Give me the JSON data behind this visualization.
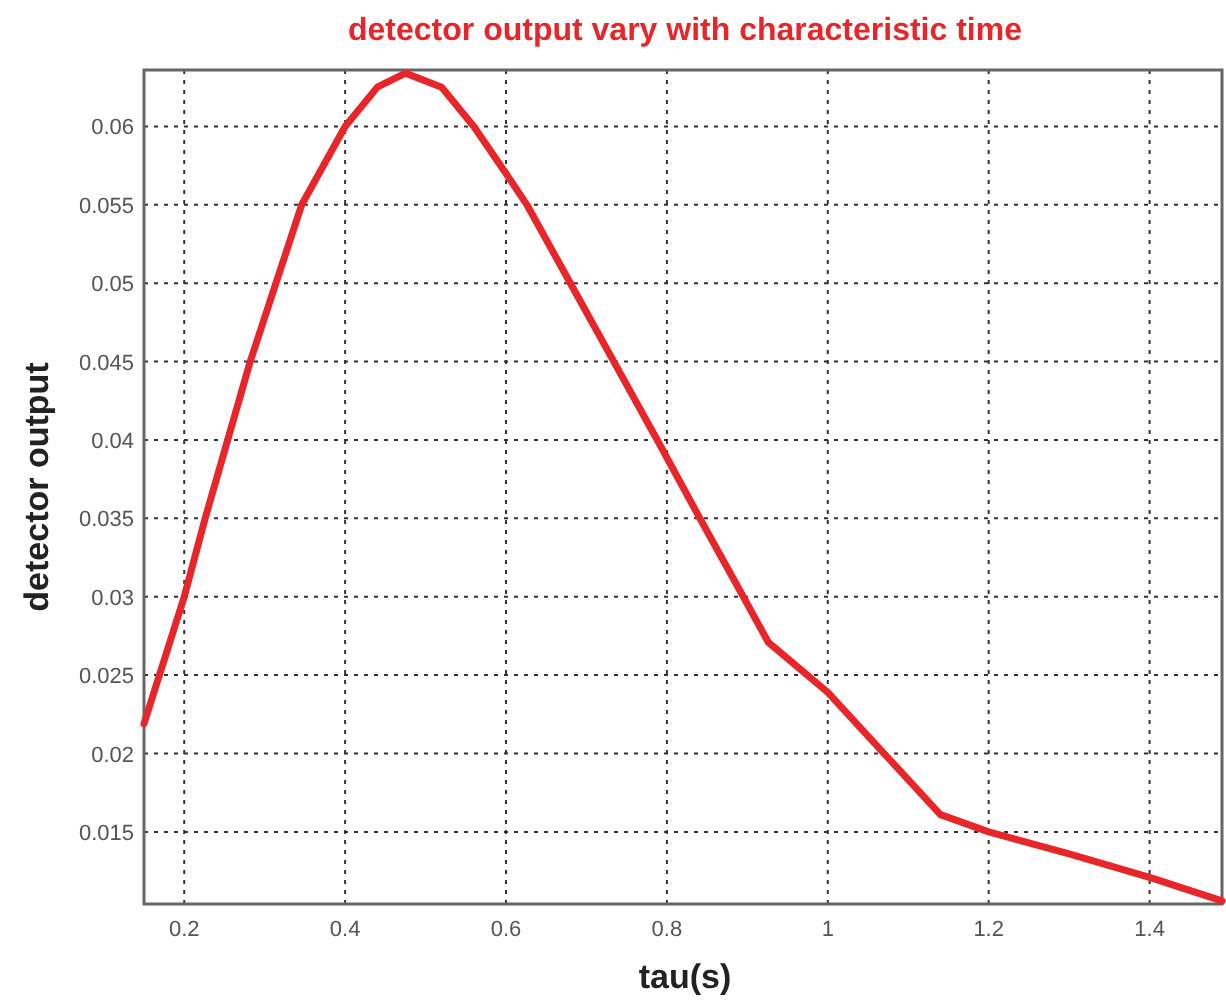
{
  "chart_data": {
    "type": "line",
    "title": "detector output vary with characteristic time",
    "xlabel": "tau(s)",
    "ylabel": "detector output",
    "xlim": [
      0.15,
      1.49
    ],
    "ylim": [
      0.0104,
      0.0636
    ],
    "xticks": [
      0.2,
      0.4,
      0.6,
      0.8,
      1,
      1.2,
      1.4
    ],
    "yticks": [
      0.015,
      0.02,
      0.025,
      0.03,
      0.035,
      0.04,
      0.045,
      0.05,
      0.055,
      0.06
    ],
    "grid": true,
    "line_style": "solid",
    "series": [
      {
        "color": "#e8262a",
        "x": [
          0.15,
          0.2,
          0.226,
          0.254,
          0.282,
          0.314,
          0.346,
          0.4,
          0.44,
          0.475,
          0.52,
          0.56,
          0.6,
          0.626,
          0.68,
          0.734,
          0.788,
          0.841,
          0.895,
          0.926,
          1.0,
          1.07,
          1.14,
          1.2,
          1.3,
          1.4,
          1.49
        ],
        "values": [
          0.0219,
          0.03,
          0.035,
          0.04,
          0.045,
          0.05,
          0.055,
          0.06,
          0.0625,
          0.0634,
          0.0625,
          0.06,
          0.057,
          0.055,
          0.05,
          0.045,
          0.04,
          0.035,
          0.03,
          0.0271,
          0.0239,
          0.02,
          0.0161,
          0.015,
          0.0136,
          0.0121,
          0.0106
        ]
      }
    ]
  }
}
